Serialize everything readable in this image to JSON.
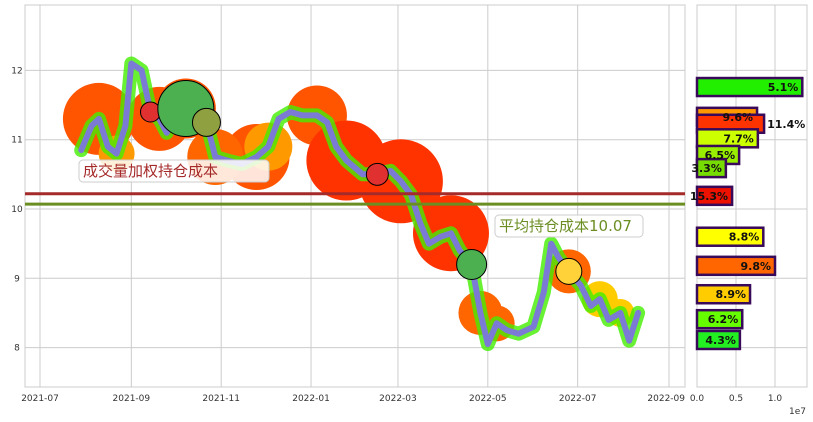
{
  "chart_data": [
    {
      "type": "line",
      "xlabel": "",
      "ylabel": "",
      "x_ticks": [
        "2021-07",
        "2021-09",
        "2021-11",
        "2022-01",
        "2022-03",
        "2022-05",
        "2022-07",
        "2022-09"
      ],
      "y_ticks": [
        "8",
        "9",
        "10",
        "11",
        "12"
      ],
      "ylim": [
        7.45,
        12.95
      ],
      "xlim": [
        "2021-06-22",
        "2022-09-10"
      ],
      "grid": true,
      "series": [
        {
          "color": "#7b7bd6",
          "points": [
            [
              "2021-07-29",
              10.85
            ],
            [
              "2021-08-05",
              11.2
            ],
            [
              "2021-08-10",
              11.3
            ],
            [
              "2021-08-16",
              10.9
            ],
            [
              "2021-08-22",
              10.8
            ],
            [
              "2021-08-28",
              11.2
            ],
            [
              "2021-09-01",
              12.1
            ],
            [
              "2021-09-08",
              12.0
            ],
            [
              "2021-09-14",
              11.4
            ],
            [
              "2021-09-20",
              11.3
            ],
            [
              "2021-09-25",
              11.1
            ],
            [
              "2021-10-01",
              11.4
            ],
            [
              "2021-10-08",
              11.45
            ],
            [
              "2021-10-15",
              11.5
            ],
            [
              "2021-10-22",
              11.25
            ],
            [
              "2021-10-28",
              10.75
            ],
            [
              "2021-11-05",
              10.7
            ],
            [
              "2021-11-15",
              10.65
            ],
            [
              "2021-11-25",
              10.75
            ],
            [
              "2021-12-03",
              10.9
            ],
            [
              "2021-12-10",
              11.3
            ],
            [
              "2021-12-18",
              11.4
            ],
            [
              "2021-12-26",
              11.35
            ],
            [
              "2022-01-05",
              11.35
            ],
            [
              "2022-01-12",
              11.25
            ],
            [
              "2022-01-18",
              10.9
            ],
            [
              "2022-01-25",
              10.7
            ],
            [
              "2022-02-05",
              10.5
            ],
            [
              "2022-02-15",
              10.5
            ],
            [
              "2022-02-24",
              10.55
            ],
            [
              "2022-03-03",
              10.4
            ],
            [
              "2022-03-10",
              10.2
            ],
            [
              "2022-03-16",
              9.8
            ],
            [
              "2022-03-22",
              9.5
            ],
            [
              "2022-03-30",
              9.6
            ],
            [
              "2022-04-06",
              9.65
            ],
            [
              "2022-04-12",
              9.4
            ],
            [
              "2022-04-20",
              9.2
            ],
            [
              "2022-04-26",
              8.5
            ],
            [
              "2022-05-01",
              8.05
            ],
            [
              "2022-05-07",
              8.35
            ],
            [
              "2022-05-14",
              8.25
            ],
            [
              "2022-05-22",
              8.2
            ],
            [
              "2022-06-01",
              8.3
            ],
            [
              "2022-06-08",
              8.8
            ],
            [
              "2022-06-13",
              9.5
            ],
            [
              "2022-06-18",
              9.3
            ],
            [
              "2022-06-25",
              9.1
            ],
            [
              "2022-07-03",
              8.9
            ],
            [
              "2022-07-10",
              8.6
            ],
            [
              "2022-07-16",
              8.7
            ],
            [
              "2022-07-22",
              8.4
            ],
            [
              "2022-07-30",
              8.5
            ],
            [
              "2022-08-05",
              8.1
            ],
            [
              "2022-08-11",
              8.5
            ]
          ]
        }
      ],
      "reference_lines": [
        {
          "label": "成交量加权持仓成本",
          "value": 10.22,
          "color": "#a52a2a"
        },
        {
          "label": "平均持仓成本10.07",
          "value": 10.07,
          "color": "#6b8e23"
        }
      ]
    },
    {
      "type": "bar",
      "orientation": "horizontal",
      "x_ticks": [
        "0.0",
        "0.5",
        "1.0"
      ],
      "x_scale_label": "1e7",
      "xlim": [
        0,
        14200000.0
      ],
      "bars": [
        {
          "price": 11.76,
          "value": 13500000.0,
          "label": "5.1%",
          "color": "#22ee00"
        },
        {
          "price": 11.33,
          "value": 7700000.0,
          "label": "9.6%",
          "color": "#ff9900"
        },
        {
          "price": 11.23,
          "value": 8600000.0,
          "label": "11.4%",
          "color": "#ff3300"
        },
        {
          "price": 11.02,
          "value": 7800000.0,
          "label": "7.7%",
          "color": "#ccff00"
        },
        {
          "price": 10.78,
          "value": 5400000.0,
          "label": "6.5%",
          "color": "#99ee00"
        },
        {
          "price": 10.59,
          "value": 3700000.0,
          "label": "3.3%",
          "color": "#77dd00"
        },
        {
          "price": 10.19,
          "value": 4500000.0,
          "label": "15.3%",
          "color": "#ee1100"
        },
        {
          "price": 9.6,
          "value": 8500000.0,
          "label": "8.8%",
          "color": "#ffff00"
        },
        {
          "price": 9.18,
          "value": 10000000.0,
          "label": "9.8%",
          "color": "#ff6600"
        },
        {
          "price": 8.77,
          "value": 6800000.0,
          "label": "8.9%",
          "color": "#ffcc00"
        },
        {
          "price": 8.41,
          "value": 5800000.0,
          "label": "6.2%",
          "color": "#66ff00"
        },
        {
          "price": 8.11,
          "value": 5500000.0,
          "label": "4.3%",
          "color": "#22ee22"
        }
      ]
    }
  ]
}
